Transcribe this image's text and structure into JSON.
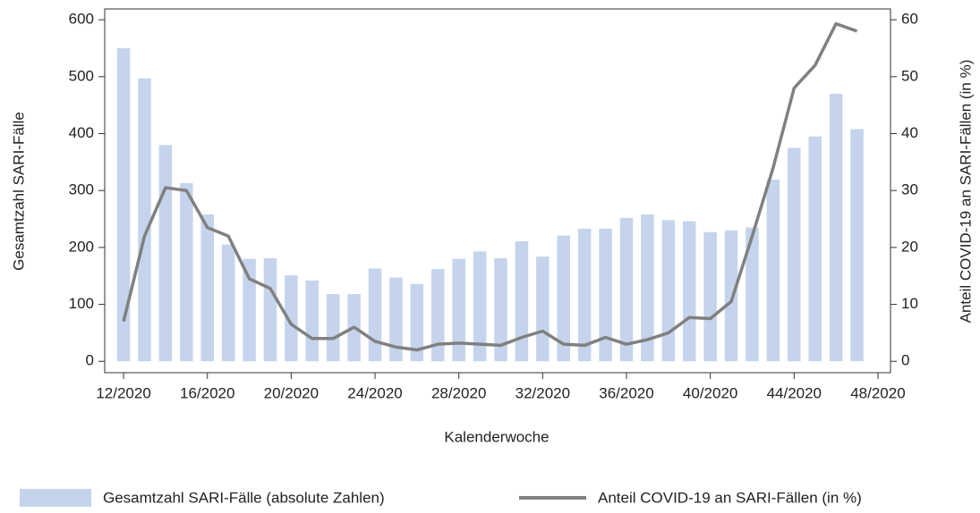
{
  "chart_data": {
    "type": "combo",
    "x_label": "Kalenderwoche",
    "y_label": "Gesamtzahl SARI-Fälle",
    "y2_label": "Anteil COVID-19 an SARI-Fällen (in %)",
    "x": [
      12,
      13,
      14,
      15,
      16,
      17,
      18,
      19,
      20,
      21,
      22,
      23,
      24,
      25,
      26,
      27,
      28,
      29,
      30,
      31,
      32,
      33,
      34,
      35,
      36,
      37,
      38,
      39,
      40,
      41,
      42,
      43,
      44,
      45,
      46,
      47
    ],
    "xlim": [
      11.1,
      48.6
    ],
    "xticks": [
      {
        "value": 12,
        "label": "12/2020"
      },
      {
        "value": 16,
        "label": "16/2020"
      },
      {
        "value": 20,
        "label": "20/2020"
      },
      {
        "value": 24,
        "label": "24/2020"
      },
      {
        "value": 28,
        "label": "28/2020"
      },
      {
        "value": 32,
        "label": "32/2020"
      },
      {
        "value": 36,
        "label": "36/2020"
      },
      {
        "value": 40,
        "label": "40/2020"
      },
      {
        "value": 44,
        "label": "44/2020"
      },
      {
        "value": 48,
        "label": "48/2020"
      }
    ],
    "ylim": [
      -20,
      619
    ],
    "yticks": [
      0,
      100,
      200,
      300,
      400,
      500,
      600
    ],
    "y2lim": [
      -2,
      61.9
    ],
    "y2ticks": [
      0,
      10,
      20,
      30,
      40,
      50,
      60
    ],
    "series": [
      {
        "name": "Gesamtzahl SARI-Fälle (absolute Zahlen)",
        "type": "bar",
        "color": "#c5d4ec",
        "values": [
          550,
          497,
          380,
          313,
          258,
          205,
          180,
          181,
          151,
          142,
          118,
          118,
          163,
          147,
          136,
          162,
          180,
          193,
          181,
          211,
          184,
          221,
          233,
          233,
          252,
          258,
          248,
          246,
          227,
          230,
          235,
          319,
          375,
          395,
          470,
          408
        ]
      },
      {
        "name": "Anteil COVID-19 an SARI-Fällen (in %)",
        "type": "line",
        "axis": "y2",
        "color": "#808080",
        "values": [
          7,
          22,
          30.5,
          30,
          23.5,
          22,
          14.5,
          12.8,
          6.5,
          4,
          4,
          6,
          3.5,
          2.5,
          2,
          3,
          3.2,
          3,
          2.8,
          4.2,
          5.3,
          3,
          2.8,
          4.2,
          3,
          3.8,
          5,
          7.7,
          7.5,
          10.5,
          22,
          34,
          48,
          52,
          59.3,
          58
        ]
      }
    ]
  }
}
